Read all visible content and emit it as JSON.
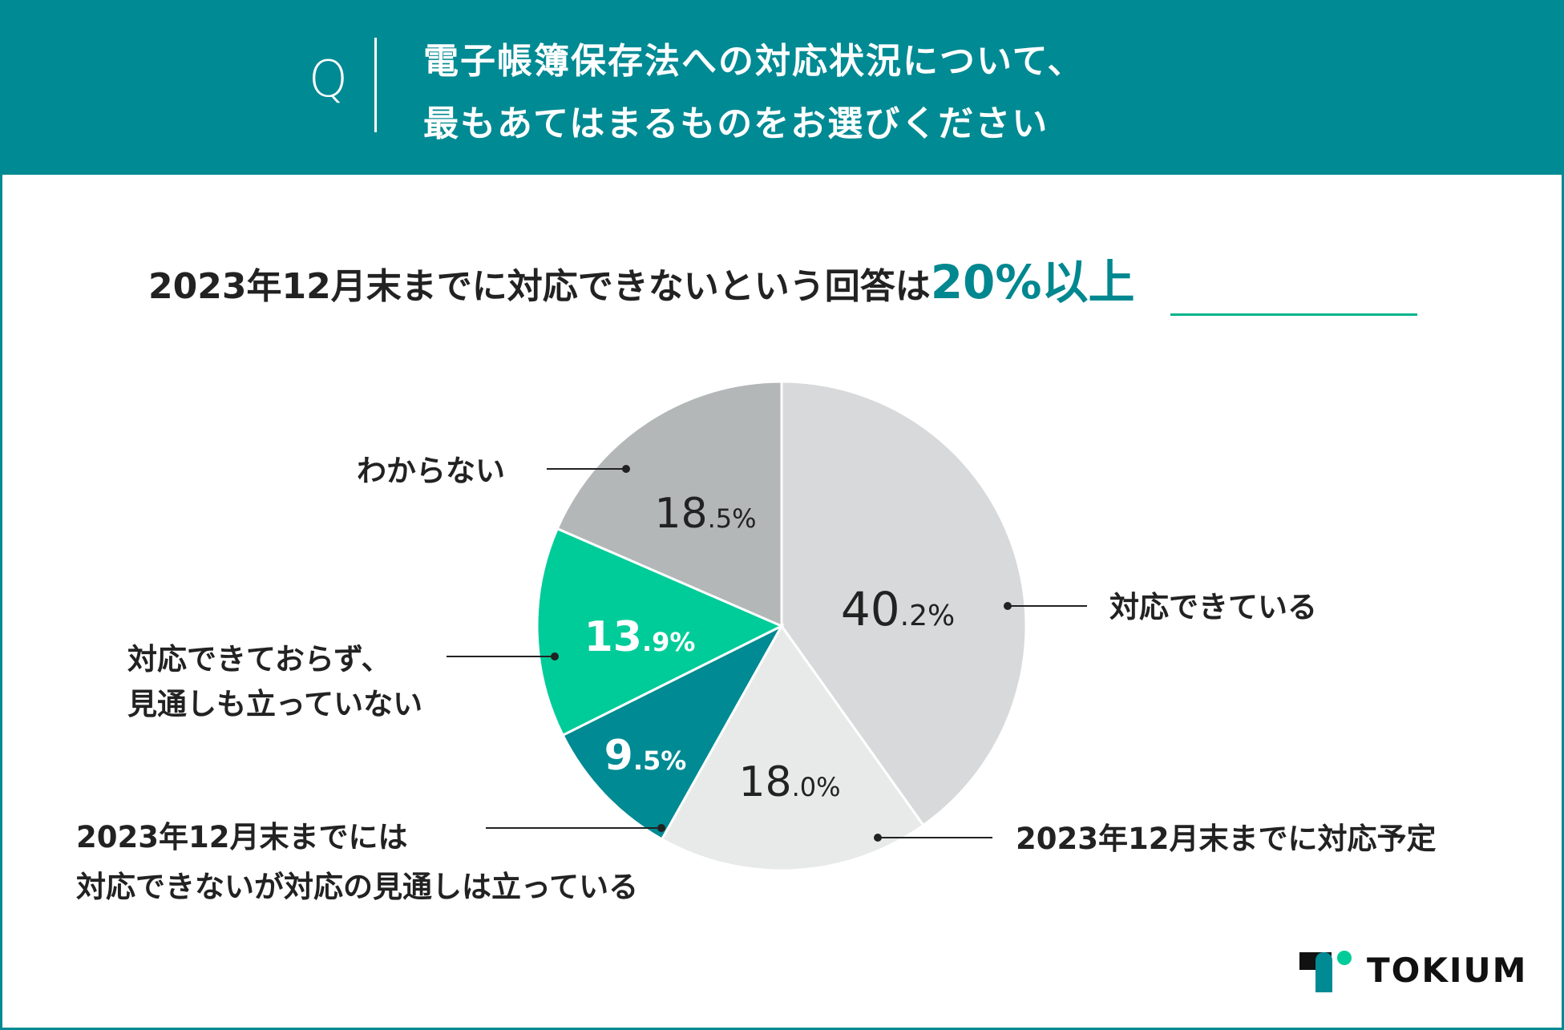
{
  "question": {
    "marker": "Q",
    "line1": "電子帳簿保存法への対応状況について、",
    "line2": "最もあてはまるものをお選びください"
  },
  "headline": {
    "text": "2023年12月末までに対応できないという回答は",
    "highlight": "20%以上"
  },
  "chart_data": {
    "type": "pie",
    "start": "top, clockwise",
    "slices": [
      {
        "label": "対応できている",
        "value": 40.2,
        "int": "40",
        "dec": ".2%",
        "color": "#d8d9da",
        "text_color": "#222222"
      },
      {
        "label": "2023年12月末までに対応予定",
        "value": 18.0,
        "int": "18",
        "dec": ".0%",
        "color": "#e8e9e9",
        "text_color": "#222222"
      },
      {
        "label": "2023年12月末までには\n対応できないが対応の見通しは立っている",
        "value": 9.5,
        "int": "9",
        "dec": ".5%",
        "color": "#008a93",
        "text_color": "#ffffff"
      },
      {
        "label": "対応できておらず、\n見通しも立っていない",
        "value": 13.9,
        "int": "13",
        "dec": ".9%",
        "color": "#00cc99",
        "text_color": "#ffffff"
      },
      {
        "label": "わからない",
        "value": 18.5,
        "int": "18",
        "dec": ".5%",
        "color": "#b3b7b7",
        "text_color": "#222222"
      }
    ]
  },
  "brand": {
    "name": "TOKIUM",
    "dark": "#111111",
    "teal": "#008a93",
    "green": "#00cc99"
  }
}
